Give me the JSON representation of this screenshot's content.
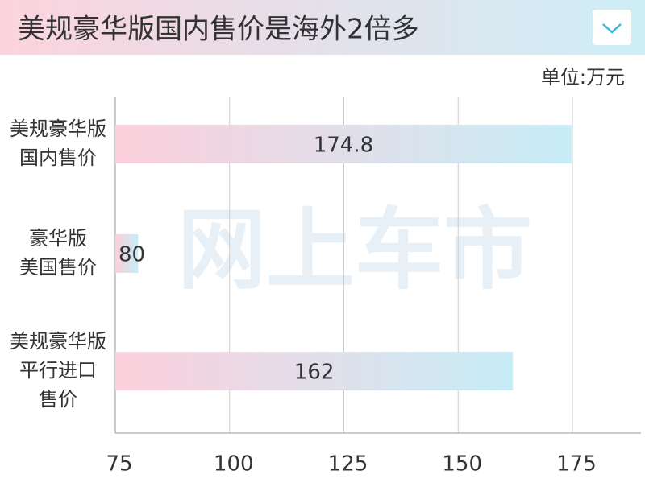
{
  "chart_data": {
    "type": "bar",
    "orientation": "horizontal",
    "title": "美规豪华版国内售价是海外2倍多",
    "unit_label": "单位:万元",
    "watermark": "网上车市",
    "categories": [
      "美规豪华版\n国内售价",
      "豪华版\n美国售价",
      "美规豪华版\n平行进口\n售价"
    ],
    "values": [
      174.8,
      80,
      162
    ],
    "colors": [
      "#fcd0dc",
      "#c6ecf6"
    ],
    "xlim": [
      75,
      190
    ],
    "xticks": [
      75,
      100,
      125,
      150,
      175
    ],
    "grid": true
  }
}
